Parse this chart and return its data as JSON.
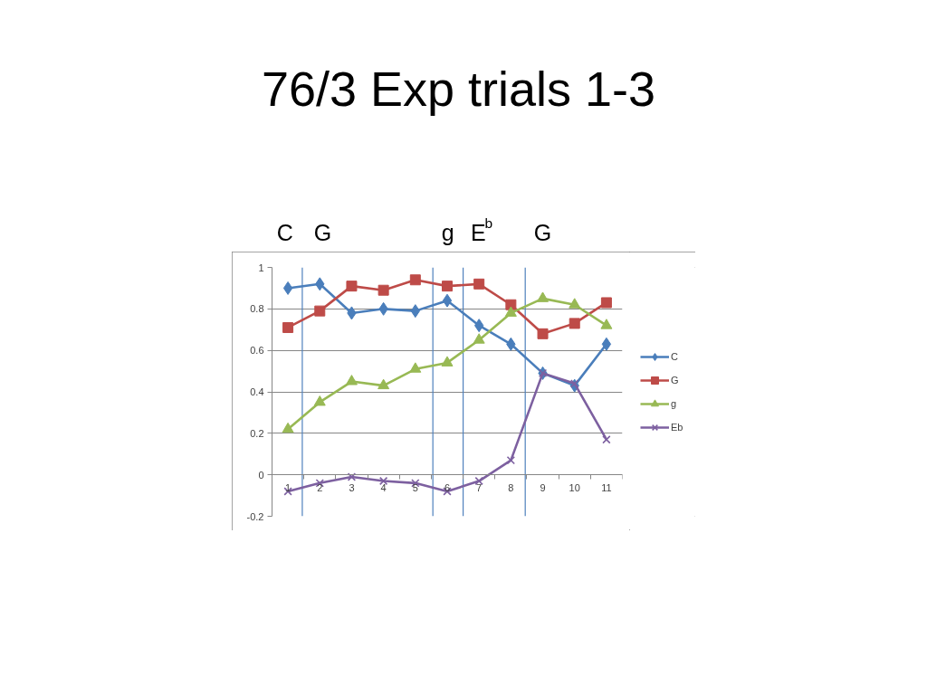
{
  "chart_data": {
    "type": "line",
    "title": "76/3 Exp trials 1-3",
    "x": [
      1,
      2,
      3,
      4,
      5,
      6,
      7,
      8,
      9,
      10,
      11
    ],
    "xlim": [
      0.5,
      11.5
    ],
    "xticks": [
      1,
      2,
      3,
      4,
      5,
      6,
      7,
      8,
      9,
      10,
      11
    ],
    "ylim": [
      -0.2,
      1
    ],
    "yticks": [
      -0.2,
      0,
      0.2,
      0.4,
      0.6,
      0.8,
      1
    ],
    "grid": "y",
    "legend": "right",
    "series": [
      {
        "name": "C",
        "color": "#4a7ebb",
        "marker": "diamond",
        "values": [
          0.9,
          0.92,
          0.78,
          0.8,
          0.79,
          0.84,
          0.72,
          0.63,
          0.49,
          0.43,
          0.63
        ]
      },
      {
        "name": "G",
        "color": "#be4b48",
        "marker": "square",
        "values": [
          0.71,
          0.79,
          0.91,
          0.89,
          0.94,
          0.91,
          0.92,
          0.82,
          0.68,
          0.73,
          0.83
        ]
      },
      {
        "name": "g",
        "color": "#98b954",
        "marker": "triangle",
        "values": [
          0.22,
          0.35,
          0.45,
          0.43,
          0.51,
          0.54,
          0.65,
          0.78,
          0.85,
          0.82,
          0.72
        ]
      },
      {
        "name": "Eb",
        "color": "#7d60a0",
        "marker": "cross",
        "values": [
          -0.08,
          -0.04,
          -0.01,
          -0.03,
          -0.04,
          -0.08,
          -0.03,
          0.07,
          0.49,
          0.44,
          0.17
        ]
      }
    ],
    "ref_lines": [
      {
        "axis": "x",
        "value": 1.45,
        "color": "#4f81bd"
      },
      {
        "axis": "x",
        "value": 5.55,
        "color": "#4f81bd"
      },
      {
        "axis": "x",
        "value": 6.5,
        "color": "#4f81bd"
      },
      {
        "axis": "x",
        "value": 8.45,
        "color": "#4f81bd"
      }
    ],
    "annotations": [
      "C",
      "G",
      "g",
      "E$^{b}$",
      "G"
    ]
  }
}
